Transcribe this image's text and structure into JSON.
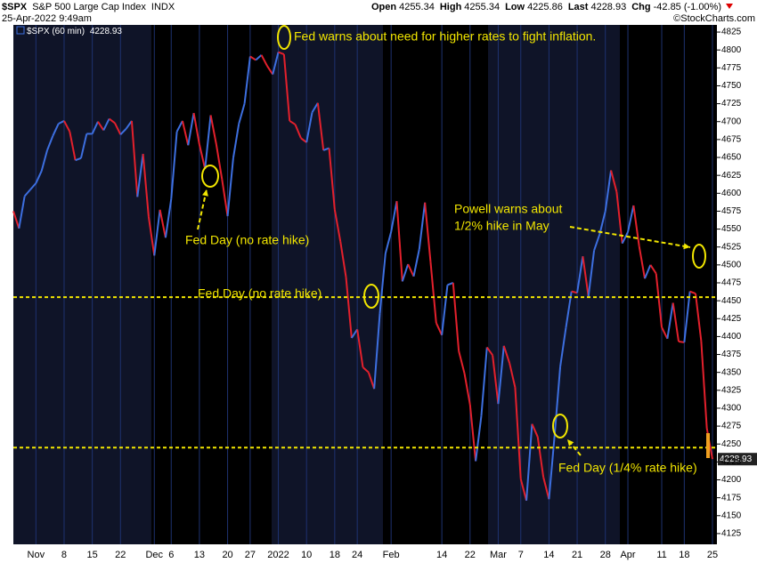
{
  "chart_data": {
    "type": "line",
    "title": "$SPX",
    "subtitle": "S&P 500 Large Cap Index",
    "exchange": "INDX",
    "timestamp": "25-Apr-2022 9:49am",
    "watermark": "©StockCharts.com",
    "quote": [
      {
        "label": "Open",
        "value": 4255.34
      },
      {
        "label": "High",
        "value": 4255.34
      },
      {
        "label": "Low",
        "value": 4225.86
      },
      {
        "label": "Last",
        "value": 4228.93
      },
      {
        "label": "Chg",
        "value": -42.85
      }
    ],
    "change_pct": {
      "value": -1,
      "label": "(-1.00%)"
    },
    "legend_value": 4228.93,
    "last_price": 4228.93,
    "categories": [
      null,
      null,
      null,
      null,
      "Nov",
      null,
      null,
      null,
      null,
      "8",
      null,
      null,
      null,
      null,
      "15",
      null,
      null,
      null,
      null,
      "22",
      null,
      null,
      null,
      null,
      null,
      "Dec",
      null,
      null,
      "6",
      null,
      null,
      null,
      null,
      "13",
      null,
      null,
      null,
      null,
      "20",
      null,
      null,
      null,
      "27",
      null,
      null,
      null,
      null,
      "2022",
      null,
      null,
      null,
      null,
      "10",
      null,
      null,
      null,
      null,
      "18",
      null,
      null,
      null,
      "24",
      null,
      null,
      null,
      null,
      null,
      "Feb",
      null,
      null,
      null,
      null,
      null,
      null,
      null,
      null,
      "14",
      null,
      null,
      null,
      null,
      "22",
      null,
      null,
      null,
      null,
      "Mar",
      null,
      null,
      null,
      "7",
      null,
      null,
      null,
      null,
      "14",
      null,
      null,
      null,
      null,
      "21",
      null,
      null,
      null,
      null,
      "28",
      null,
      null,
      null,
      "Apr",
      null,
      null,
      null,
      null,
      null,
      "11",
      null,
      null,
      null,
      "18",
      null,
      null,
      null,
      null,
      "25"
    ],
    "series": [
      {
        "name": "$SPX (60 min)",
        "up_color": "#3d6fe0",
        "down_color": "#e3202c",
        "values": [
          4575,
          4551,
          4596,
          4605,
          4614,
          4631,
          4660,
          4680,
          4697,
          4701,
          4686,
          4646,
          4649,
          4683,
          4683,
          4700,
          4688,
          4704,
          4698,
          4682,
          4690,
          4701,
          4595,
          4655,
          4567,
          4513,
          4577,
          4538,
          4592,
          4686,
          4701,
          4667,
          4712,
          4668,
          4634,
          4709,
          4668,
          4620,
          4568,
          4649,
          4697,
          4725,
          4791,
          4786,
          4793,
          4778,
          4766,
          4797,
          4794,
          4701,
          4696,
          4677,
          4671,
          4713,
          4726,
          4660,
          4663,
          4577,
          4533,
          4483,
          4398,
          4410,
          4357,
          4350,
          4327,
          4432,
          4516,
          4546,
          4589,
          4477,
          4501,
          4484,
          4522,
          4587,
          4504,
          4419,
          4402,
          4472,
          4475,
          4380,
          4349,
          4305,
          4226,
          4289,
          4385,
          4374,
          4306,
          4387,
          4363,
          4329,
          4201,
          4171,
          4278,
          4260,
          4204,
          4173,
          4262,
          4358,
          4412,
          4463,
          4461,
          4512,
          4456,
          4520,
          4543,
          4575,
          4632,
          4602,
          4530,
          4546,
          4583,
          4526,
          4481,
          4500,
          4488,
          4413,
          4397,
          4447,
          4393,
          4392,
          4463,
          4460,
          4394,
          4272,
          4229
        ]
      }
    ],
    "ylim": [
      4110,
      4835
    ],
    "yticks": [
      4125,
      4150,
      4175,
      4200,
      4225,
      4250,
      4275,
      4300,
      4325,
      4350,
      4375,
      4400,
      4425,
      4450,
      4475,
      4500,
      4525,
      4550,
      4575,
      4600,
      4625,
      4650,
      4675,
      4700,
      4725,
      4750,
      4775,
      4800,
      4825
    ],
    "ref_lines": [
      4455,
      4245
    ],
    "ref_color": "#f2e600",
    "annotations": [
      {
        "lines": [
          "Fed warns about need for higher rates to fight inflation."
        ]
      },
      {
        "lines": [
          "Fed Day (no rate hike)"
        ]
      },
      {
        "lines": [
          "Fed Day (no rate hike)"
        ]
      },
      {
        "lines": [
          "Powell warns about",
          "1/2% hike in May"
        ]
      },
      {
        "lines": [
          "Fed Day (1/4% rate hike)"
        ]
      }
    ],
    "annotation_color": "#f2e600",
    "grid": true
  }
}
